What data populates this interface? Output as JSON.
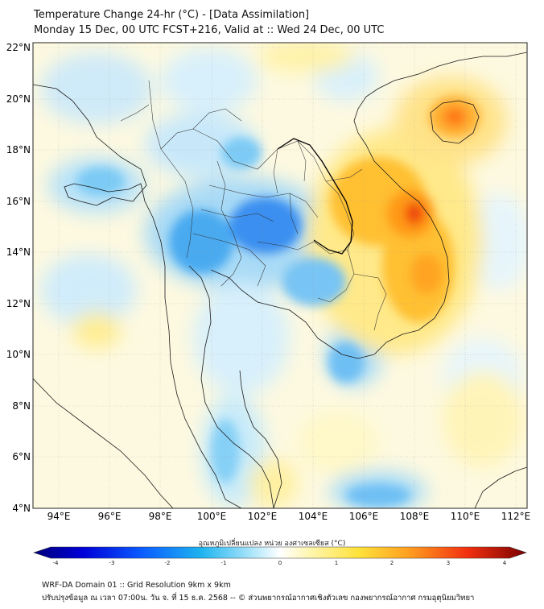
{
  "title": {
    "line1": "Temperature Change 24-hr (°C) - [Data Assimilation]",
    "line2": "Monday 15 Dec, 00 UTC FCST+216, Valid at :: Wed 24 Dec, 00 UTC"
  },
  "map": {
    "lat_labels": [
      "22°N",
      "20°N",
      "18°N",
      "16°N",
      "14°N",
      "12°N",
      "10°N",
      "8°N",
      "6°N",
      "4°N"
    ],
    "lon_labels": [
      "94°E",
      "96°E",
      "98°E",
      "100°E",
      "102°E",
      "104°E",
      "106°E",
      "108°E",
      "110°E",
      "112°E"
    ],
    "lat_range": [
      4,
      22.2
    ],
    "lon_range": [
      93,
      112.4
    ],
    "colors": {
      "strong_cold": "#1a5ad8",
      "cold": "#3aa0e8",
      "light_cold": "#a8dcf8",
      "neutral": "#ffffff",
      "light_warm": "#fff2a0",
      "warm": "#ffd040",
      "hot": "#ff8a10",
      "very_hot": "#e83010"
    }
  },
  "colorbar": {
    "label": "อุณหภูมิเปลี่ยนแปลง หน่วย องศาเซลเซียส (°C)",
    "ticks": [
      "-4",
      "-3",
      "-2",
      "-1",
      "0",
      "1",
      "2",
      "3",
      "4"
    ],
    "range": [
      -4,
      4
    ]
  },
  "footer": {
    "line1": "WRF-DA Domain 01 :: Grid Resolution 9km x 9km",
    "line2": "ปรับปรุงข้อมูล ณ เวลา 07:00น. วัน จ. ที่ 15 ธ.ค. 2568 -- © ส่วนพยากรณ์อากาศเชิงตัวเลข กองพยากรณ์อากาศ กรมอุตุนิยมวิทยา"
  }
}
